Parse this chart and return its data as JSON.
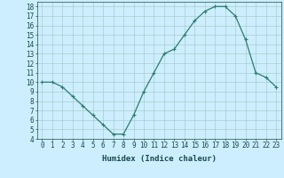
{
  "x": [
    0,
    1,
    2,
    3,
    4,
    5,
    6,
    7,
    8,
    9,
    10,
    11,
    12,
    13,
    14,
    15,
    16,
    17,
    18,
    19,
    20,
    21,
    22,
    23
  ],
  "y": [
    10,
    10,
    9.5,
    8.5,
    7.5,
    6.5,
    5.5,
    4.5,
    4.5,
    6.5,
    9.0,
    11.0,
    13.0,
    13.5,
    15.0,
    16.5,
    17.5,
    18.0,
    18.0,
    17.0,
    14.5,
    11.0,
    10.5,
    9.5
  ],
  "xlabel": "Humidex (Indice chaleur)",
  "line_color": "#2d7c6e",
  "marker": "+",
  "marker_size": 3,
  "linewidth": 0.9,
  "background_color": "#cceeff",
  "grid_color": "#aacccc",
  "axis_bg": "#cceeff",
  "tick_label_color": "#1a4a4a",
  "xlim": [
    -0.5,
    23.5
  ],
  "ylim": [
    4,
    18.5
  ],
  "yticks": [
    4,
    5,
    6,
    7,
    8,
    9,
    10,
    11,
    12,
    13,
    14,
    15,
    16,
    17,
    18
  ],
  "xticks": [
    0,
    1,
    2,
    3,
    4,
    5,
    6,
    7,
    8,
    9,
    10,
    11,
    12,
    13,
    14,
    15,
    16,
    17,
    18,
    19,
    20,
    21,
    22,
    23
  ],
  "xtick_labels": [
    "0",
    "1",
    "2",
    "3",
    "4",
    "5",
    "6",
    "7",
    "8",
    "9",
    "10",
    "11",
    "12",
    "13",
    "14",
    "15",
    "16",
    "17",
    "18",
    "19",
    "20",
    "21",
    "22",
    "23"
  ],
  "tick_fontsize": 5.5,
  "xlabel_fontsize": 6.5
}
